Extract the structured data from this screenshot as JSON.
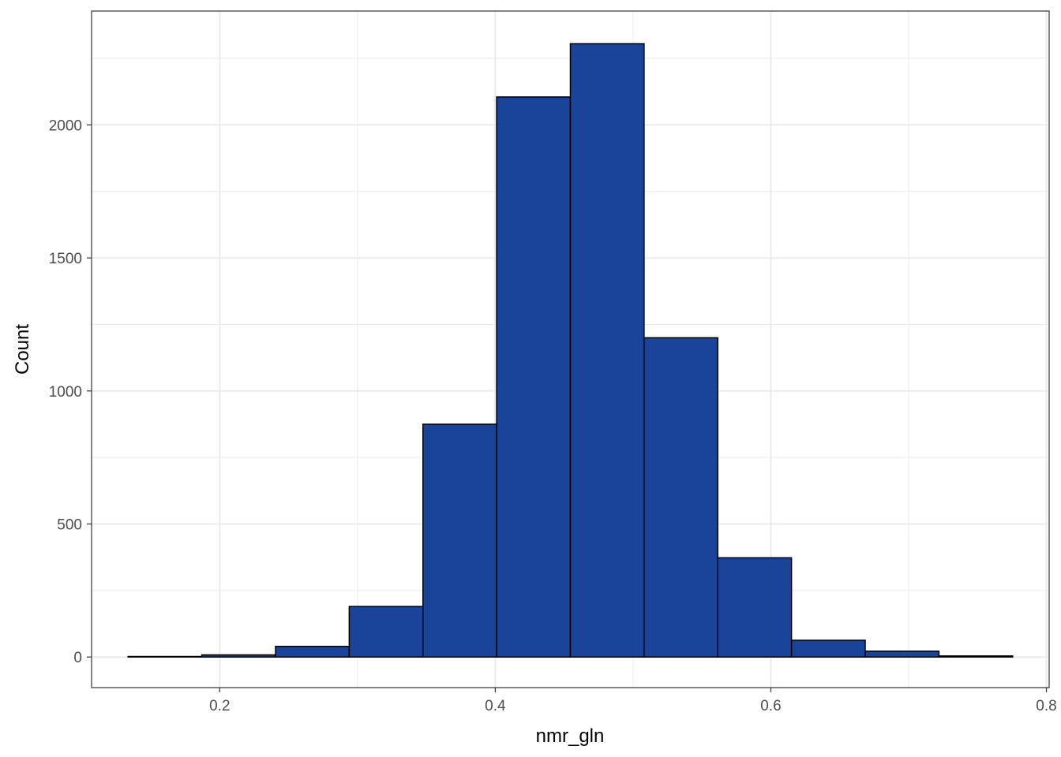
{
  "chart_data": {
    "type": "bar",
    "subtype": "histogram",
    "title": "",
    "xlabel": "nmr_gln",
    "ylabel": "Count",
    "bin_width": 0.0535,
    "bin_edges": [
      0.1335,
      0.187,
      0.2405,
      0.294,
      0.3475,
      0.401,
      0.4545,
      0.508,
      0.5615,
      0.615,
      0.6685,
      0.722,
      0.7755
    ],
    "values": [
      2,
      8,
      40,
      190,
      875,
      2105,
      2305,
      1200,
      373,
      63,
      22,
      4
    ],
    "xlim": [
      0.107,
      0.802
    ],
    "ylim": [
      -115,
      2428
    ],
    "x_ticks": [
      0.2,
      0.4,
      0.6,
      0.8
    ],
    "x_tick_labels": [
      "0.2",
      "0.4",
      "0.6",
      "0.8"
    ],
    "y_ticks": [
      0,
      500,
      1000,
      1500,
      2000
    ],
    "y_tick_labels": [
      "0",
      "500",
      "1000",
      "1500",
      "2000"
    ],
    "x_minor_ticks": [
      0.3,
      0.5,
      0.7
    ],
    "y_minor_ticks": [
      250,
      750,
      1250,
      1750,
      2250
    ],
    "grid": true,
    "legend": "none",
    "colors": {
      "bar_fill": "#1a4499",
      "bar_outline": "#000000",
      "grid": "#ebebeb",
      "panel_border": "#333333",
      "tick_text": "#4d4d4d"
    }
  }
}
